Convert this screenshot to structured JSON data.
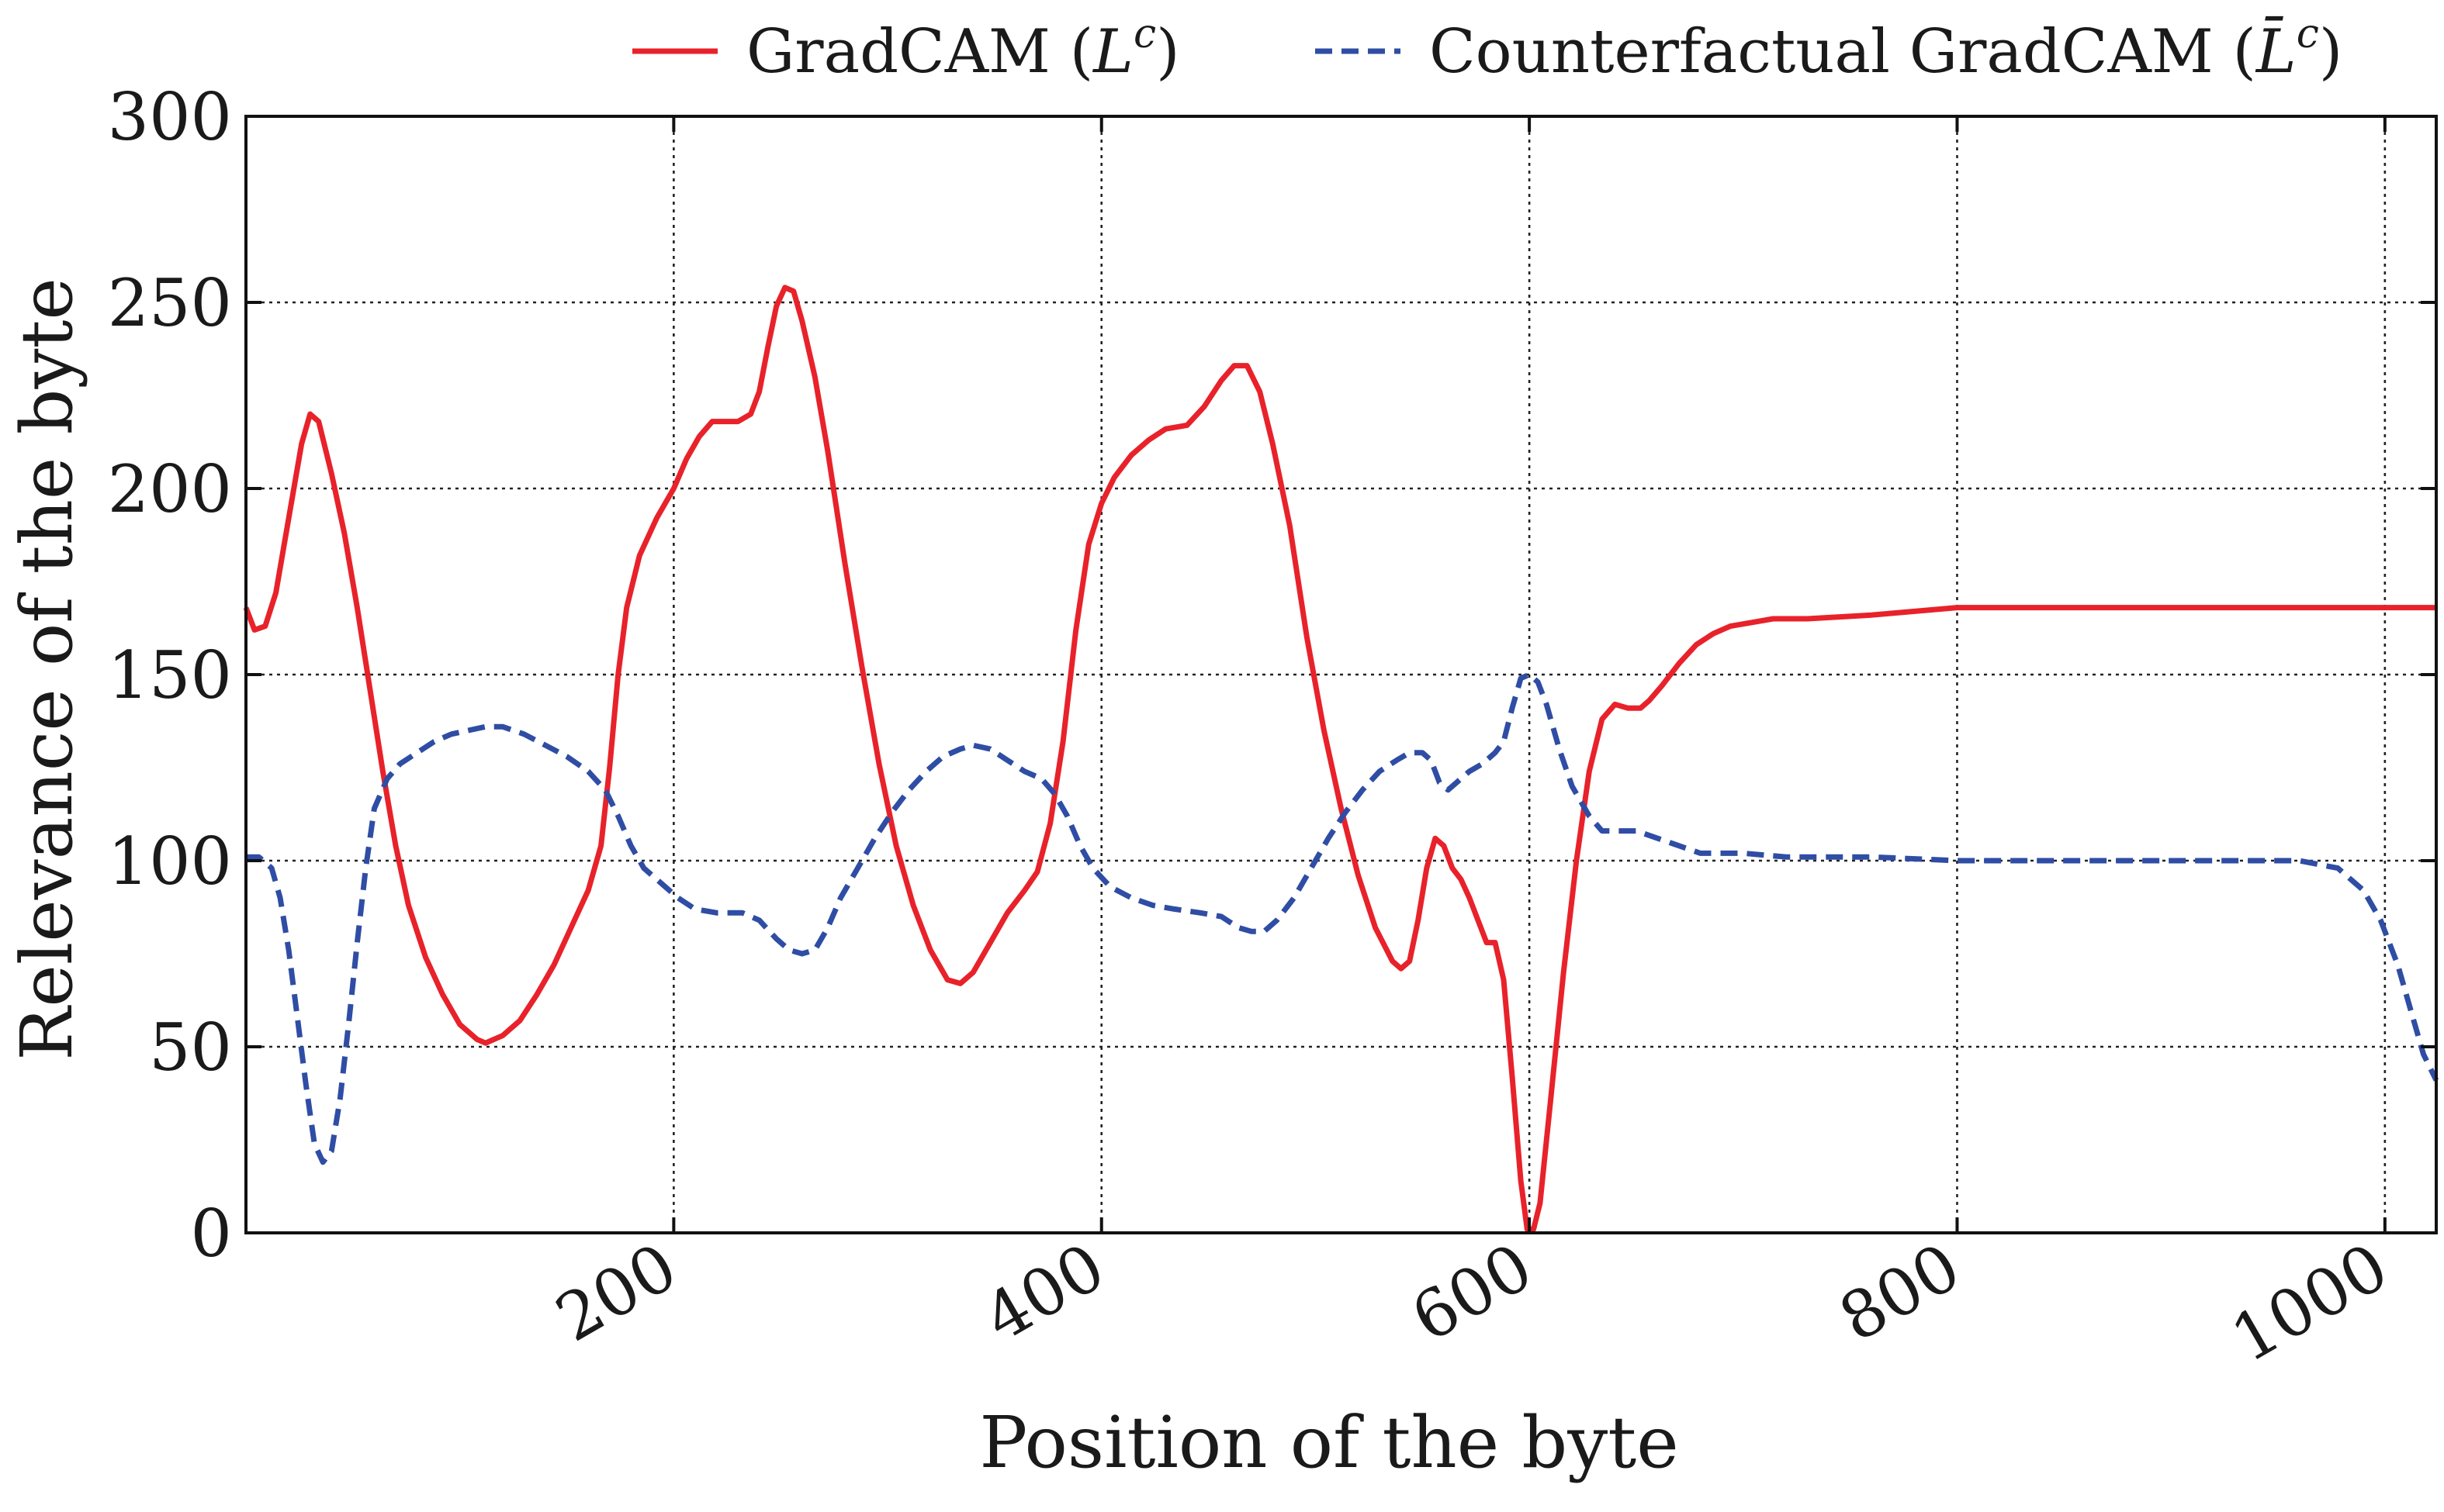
{
  "chart_data": {
    "type": "line",
    "xlabel": "Position of the byte",
    "ylabel": "Relevance of the byte",
    "xlim": [
      0,
      1024
    ],
    "ylim": [
      0,
      300
    ],
    "x_ticks": [
      200,
      400,
      600,
      800,
      1000
    ],
    "x_tick_labels": [
      "200",
      "400",
      "600",
      "800",
      "1000"
    ],
    "y_ticks": [
      0,
      50,
      100,
      150,
      200,
      250,
      300
    ],
    "y_tick_labels": [
      "0",
      "50",
      "100",
      "150",
      "200",
      "250",
      "300"
    ],
    "grid": true,
    "legend_position": "top",
    "series": [
      {
        "name": "GradCAM (L^c)",
        "legend_main": "GradCAM (",
        "legend_var": "L",
        "legend_sup": "c",
        "legend_close": ")",
        "color": "#e8222a",
        "style": "solid",
        "points": [
          [
            0,
            168
          ],
          [
            4,
            162
          ],
          [
            9,
            163
          ],
          [
            14,
            172
          ],
          [
            20,
            192
          ],
          [
            26,
            212
          ],
          [
            30,
            220
          ],
          [
            34,
            218
          ],
          [
            40,
            204
          ],
          [
            46,
            188
          ],
          [
            52,
            168
          ],
          [
            58,
            146
          ],
          [
            64,
            124
          ],
          [
            70,
            104
          ],
          [
            76,
            88
          ],
          [
            84,
            74
          ],
          [
            92,
            64
          ],
          [
            100,
            56
          ],
          [
            108,
            52
          ],
          [
            112,
            51
          ],
          [
            120,
            53
          ],
          [
            128,
            57
          ],
          [
            136,
            64
          ],
          [
            144,
            72
          ],
          [
            152,
            82
          ],
          [
            160,
            92
          ],
          [
            166,
            104
          ],
          [
            170,
            125
          ],
          [
            174,
            150
          ],
          [
            178,
            168
          ],
          [
            184,
            182
          ],
          [
            192,
            192
          ],
          [
            200,
            200
          ],
          [
            206,
            208
          ],
          [
            212,
            214
          ],
          [
            218,
            218
          ],
          [
            230,
            218
          ],
          [
            236,
            220
          ],
          [
            240,
            226
          ],
          [
            244,
            238
          ],
          [
            248,
            249
          ],
          [
            252,
            254
          ],
          [
            256,
            253
          ],
          [
            260,
            245
          ],
          [
            266,
            230
          ],
          [
            272,
            210
          ],
          [
            280,
            180
          ],
          [
            288,
            152
          ],
          [
            296,
            126
          ],
          [
            304,
            104
          ],
          [
            312,
            88
          ],
          [
            320,
            76
          ],
          [
            328,
            68
          ],
          [
            334,
            67
          ],
          [
            340,
            70
          ],
          [
            348,
            78
          ],
          [
            356,
            86
          ],
          [
            364,
            92
          ],
          [
            370,
            97
          ],
          [
            376,
            110
          ],
          [
            382,
            132
          ],
          [
            388,
            162
          ],
          [
            394,
            185
          ],
          [
            400,
            196
          ],
          [
            406,
            203
          ],
          [
            414,
            209
          ],
          [
            422,
            213
          ],
          [
            430,
            216
          ],
          [
            440,
            217
          ],
          [
            448,
            222
          ],
          [
            456,
            229
          ],
          [
            462,
            233
          ],
          [
            468,
            233
          ],
          [
            474,
            226
          ],
          [
            480,
            212
          ],
          [
            488,
            190
          ],
          [
            496,
            160
          ],
          [
            504,
            135
          ],
          [
            512,
            114
          ],
          [
            520,
            96
          ],
          [
            528,
            82
          ],
          [
            536,
            73
          ],
          [
            540,
            71
          ],
          [
            544,
            73
          ],
          [
            548,
            84
          ],
          [
            552,
            98
          ],
          [
            556,
            106
          ],
          [
            560,
            104
          ],
          [
            564,
            98
          ],
          [
            568,
            95
          ],
          [
            572,
            90
          ],
          [
            576,
            84
          ],
          [
            580,
            78
          ],
          [
            584,
            78
          ],
          [
            588,
            68
          ],
          [
            592,
            42
          ],
          [
            596,
            14
          ],
          [
            599,
            1
          ],
          [
            602,
            1
          ],
          [
            605,
            8
          ],
          [
            610,
            36
          ],
          [
            616,
            70
          ],
          [
            622,
            100
          ],
          [
            628,
            124
          ],
          [
            634,
            138
          ],
          [
            640,
            142
          ],
          [
            646,
            141
          ],
          [
            652,
            141
          ],
          [
            656,
            143
          ],
          [
            662,
            147
          ],
          [
            670,
            153
          ],
          [
            678,
            158
          ],
          [
            686,
            161
          ],
          [
            694,
            163
          ],
          [
            704,
            164
          ],
          [
            714,
            165
          ],
          [
            730,
            165
          ],
          [
            760,
            166
          ],
          [
            800,
            168
          ],
          [
            860,
            168
          ],
          [
            1024,
            168
          ]
        ]
      },
      {
        "name": "Counterfactual GradCAM (L̄^c)",
        "legend_main": "Counterfactual GradCAM (",
        "legend_var": "L̄",
        "legend_sup": "c",
        "legend_close": ")",
        "color": "#2f4da4",
        "style": "dashed",
        "points": [
          [
            0,
            101
          ],
          [
            6,
            101
          ],
          [
            12,
            98
          ],
          [
            16,
            90
          ],
          [
            20,
            76
          ],
          [
            24,
            58
          ],
          [
            28,
            40
          ],
          [
            32,
            24
          ],
          [
            36,
            19
          ],
          [
            40,
            22
          ],
          [
            44,
            36
          ],
          [
            48,
            56
          ],
          [
            52,
            78
          ],
          [
            56,
            98
          ],
          [
            60,
            114
          ],
          [
            66,
            122
          ],
          [
            72,
            126
          ],
          [
            80,
            129
          ],
          [
            88,
            132
          ],
          [
            96,
            134
          ],
          [
            104,
            135
          ],
          [
            112,
            136
          ],
          [
            120,
            136
          ],
          [
            130,
            134
          ],
          [
            140,
            131
          ],
          [
            150,
            128
          ],
          [
            160,
            124
          ],
          [
            168,
            119
          ],
          [
            174,
            112
          ],
          [
            180,
            104
          ],
          [
            186,
            98
          ],
          [
            194,
            94
          ],
          [
            202,
            90
          ],
          [
            210,
            87
          ],
          [
            220,
            86
          ],
          [
            232,
            86
          ],
          [
            240,
            84
          ],
          [
            248,
            79
          ],
          [
            254,
            76
          ],
          [
            260,
            75
          ],
          [
            266,
            76
          ],
          [
            272,
            82
          ],
          [
            278,
            90
          ],
          [
            286,
            98
          ],
          [
            294,
            106
          ],
          [
            302,
            113
          ],
          [
            310,
            119
          ],
          [
            318,
            124
          ],
          [
            326,
            128
          ],
          [
            334,
            130
          ],
          [
            340,
            131
          ],
          [
            348,
            130
          ],
          [
            356,
            127
          ],
          [
            364,
            124
          ],
          [
            372,
            122
          ],
          [
            378,
            118
          ],
          [
            384,
            112
          ],
          [
            390,
            104
          ],
          [
            396,
            98
          ],
          [
            404,
            93
          ],
          [
            414,
            90
          ],
          [
            424,
            88
          ],
          [
            434,
            87
          ],
          [
            446,
            86
          ],
          [
            456,
            85
          ],
          [
            464,
            82
          ],
          [
            470,
            81
          ],
          [
            476,
            81
          ],
          [
            482,
            84
          ],
          [
            490,
            90
          ],
          [
            498,
            98
          ],
          [
            506,
            106
          ],
          [
            514,
            113
          ],
          [
            522,
            119
          ],
          [
            530,
            124
          ],
          [
            538,
            127
          ],
          [
            544,
            129
          ],
          [
            550,
            129
          ],
          [
            554,
            127
          ],
          [
            558,
            121
          ],
          [
            562,
            119
          ],
          [
            566,
            121
          ],
          [
            572,
            124
          ],
          [
            578,
            126
          ],
          [
            584,
            129
          ],
          [
            588,
            132
          ],
          [
            592,
            141
          ],
          [
            596,
            149
          ],
          [
            600,
            150
          ],
          [
            604,
            148
          ],
          [
            608,
            142
          ],
          [
            614,
            130
          ],
          [
            620,
            120
          ],
          [
            628,
            112
          ],
          [
            634,
            108
          ],
          [
            650,
            108
          ],
          [
            660,
            106
          ],
          [
            670,
            104
          ],
          [
            680,
            102
          ],
          [
            700,
            102
          ],
          [
            720,
            101
          ],
          [
            760,
            101
          ],
          [
            800,
            100
          ],
          [
            900,
            100
          ],
          [
            960,
            100
          ],
          [
            978,
            98
          ],
          [
            990,
            92
          ],
          [
            998,
            84
          ],
          [
            1006,
            72
          ],
          [
            1012,
            60
          ],
          [
            1018,
            48
          ],
          [
            1024,
            41
          ]
        ]
      }
    ]
  }
}
